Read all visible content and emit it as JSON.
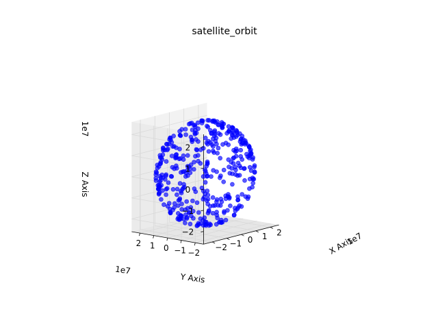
{
  "chart_data": {
    "type": "scatter",
    "projection": "3d",
    "title": "satellite_orbit",
    "xlabel": "X Axis",
    "ylabel": "Y Axis",
    "zlabel": "Z Axis",
    "x_offset_label": "1e7",
    "y_offset_label": "1e7",
    "z_offset_label": "1e7",
    "x_ticks": [
      -2,
      -1,
      0,
      1,
      2
    ],
    "y_ticks": [
      2,
      1,
      0,
      -1,
      -2
    ],
    "z_ticks": [
      2,
      1,
      0,
      -1,
      -2
    ],
    "x_tick_labels": [
      "−2",
      "−1",
      "0",
      "1",
      "2"
    ],
    "y_tick_labels": [
      "2",
      "1",
      "0",
      "−1",
      "−2"
    ],
    "z_tick_labels": [
      "2",
      "1",
      "0",
      "−1",
      "−2"
    ],
    "xlim": [
      -2.6,
      2.6
    ],
    "ylim": [
      -2.6,
      2.6
    ],
    "zlim": [
      -2.6,
      2.6
    ],
    "radius": 2.6,
    "point_count": 420,
    "marker_color": "#0000ff",
    "grid": true,
    "legend": "none"
  },
  "colors": {
    "pane_back": "#f2f2f2",
    "pane_side": "#ebebeb",
    "pane_floor": "#e6e6e6",
    "grid": "#d9d9d9",
    "marker": "#0000ff"
  }
}
